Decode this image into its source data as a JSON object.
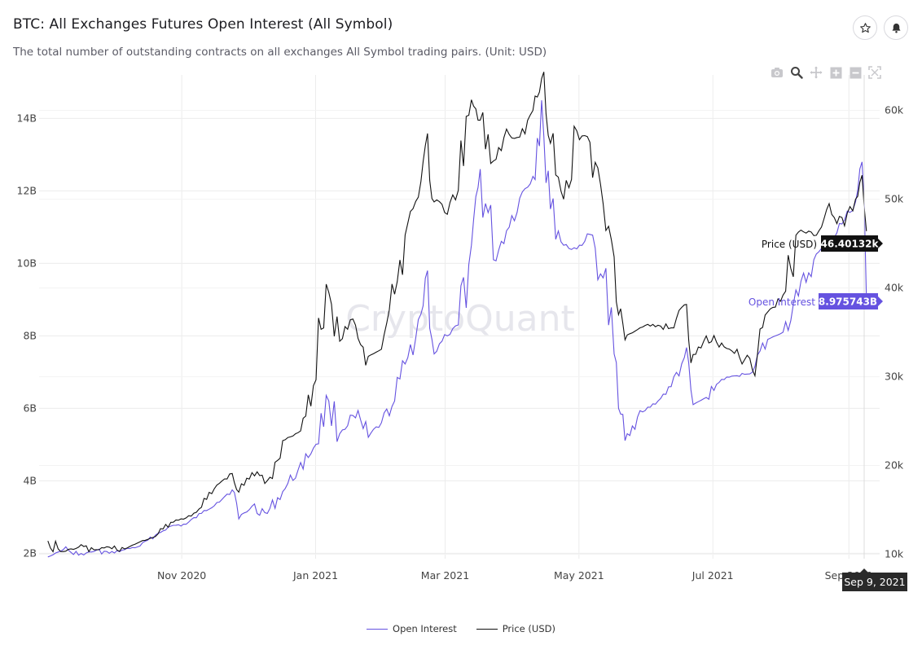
{
  "header": {
    "title": "BTC: All Exchanges Futures Open Interest (All Symbol)",
    "subtitle": "The total number of outstanding contracts on all exchanges All Symbol trading pairs. (Unit: USD)",
    "star_icon": "star-icon",
    "bell_icon": "bell-icon"
  },
  "toolbar": {
    "icons": [
      "camera-icon",
      "zoom-icon",
      "pan-icon",
      "zoom-in-icon",
      "zoom-out-icon",
      "reset-axes-icon"
    ]
  },
  "watermark": "CryptoQuant",
  "colors": {
    "open_interest": "#6552e0",
    "price": "#111111",
    "grid": "#ececec",
    "hover_date_bg": "#2a2a2a"
  },
  "chart_data": {
    "type": "line",
    "x_ticks": [
      "Nov 2020",
      "Jan 2021",
      "Mar 2021",
      "May 2021",
      "Jul 2021",
      "Sep 2021"
    ],
    "y_left_ticks": [
      "2B",
      "4B",
      "6B",
      "8B",
      "10B",
      "12B",
      "14B"
    ],
    "y_right_ticks": [
      "10k",
      "20k",
      "30k",
      "40k",
      "50k",
      "60k"
    ],
    "y_left_range": [
      1.85,
      15.2
    ],
    "y_right_range": [
      9.5,
      64
    ],
    "series": [
      {
        "name": "Open Interest",
        "axis": "left",
        "unit": "B",
        "points": [
          [
            "2020-09-01",
            1.9
          ],
          [
            "2020-09-08",
            2.1
          ],
          [
            "2020-09-15",
            1.95
          ],
          [
            "2020-09-22",
            2.05
          ],
          [
            "2020-09-29",
            2.0
          ],
          [
            "2020-10-06",
            2.1
          ],
          [
            "2020-10-13",
            2.2
          ],
          [
            "2020-10-20",
            2.5
          ],
          [
            "2020-10-27",
            2.75
          ],
          [
            "2020-11-03",
            2.8
          ],
          [
            "2020-11-10",
            3.1
          ],
          [
            "2020-11-17",
            3.4
          ],
          [
            "2020-11-24",
            3.75
          ],
          [
            "2020-11-27",
            2.95
          ],
          [
            "2020-12-03",
            3.3
          ],
          [
            "2020-12-10",
            3.1
          ],
          [
            "2020-12-17",
            3.7
          ],
          [
            "2020-12-24",
            4.3
          ],
          [
            "2020-12-31",
            4.9
          ],
          [
            "2021-01-07",
            6.2
          ],
          [
            "2021-01-12",
            5.3
          ],
          [
            "2021-01-18",
            5.8
          ],
          [
            "2021-01-25",
            5.2
          ],
          [
            "2021-01-31",
            5.6
          ],
          [
            "2021-02-06",
            6.2
          ],
          [
            "2021-02-12",
            7.4
          ],
          [
            "2021-02-18",
            8.6
          ],
          [
            "2021-02-21",
            9.8
          ],
          [
            "2021-02-24",
            7.5
          ],
          [
            "2021-03-02",
            8.0
          ],
          [
            "2021-03-07",
            8.3
          ],
          [
            "2021-03-13",
            10.5
          ],
          [
            "2021-03-17",
            12.6
          ],
          [
            "2021-03-23",
            10.1
          ],
          [
            "2021-03-29",
            10.9
          ],
          [
            "2021-04-04",
            11.8
          ],
          [
            "2021-04-10",
            12.4
          ],
          [
            "2021-04-14",
            14.5
          ],
          [
            "2021-04-18",
            11.5
          ],
          [
            "2021-04-24",
            10.5
          ],
          [
            "2021-04-30",
            10.4
          ],
          [
            "2021-05-06",
            10.8
          ],
          [
            "2021-05-12",
            9.6
          ],
          [
            "2021-05-17",
            7.5
          ],
          [
            "2021-05-19",
            6.0
          ],
          [
            "2021-05-23",
            5.3
          ],
          [
            "2021-05-30",
            5.9
          ],
          [
            "2021-06-06",
            6.2
          ],
          [
            "2021-06-12",
            6.6
          ],
          [
            "2021-06-18",
            7.4
          ],
          [
            "2021-06-22",
            6.1
          ],
          [
            "2021-06-28",
            6.3
          ],
          [
            "2021-07-05",
            6.8
          ],
          [
            "2021-07-12",
            6.9
          ],
          [
            "2021-07-19",
            7.0
          ],
          [
            "2021-07-26",
            7.9
          ],
          [
            "2021-08-02",
            8.1
          ],
          [
            "2021-08-09",
            9.1
          ],
          [
            "2021-08-16",
            10.1
          ],
          [
            "2021-08-23",
            10.6
          ],
          [
            "2021-08-30",
            11.2
          ],
          [
            "2021-09-04",
            11.7
          ],
          [
            "2021-09-07",
            12.8
          ],
          [
            "2021-09-09",
            8.975743
          ]
        ]
      },
      {
        "name": "Price (USD)",
        "axis": "right",
        "unit": "k",
        "points": [
          [
            "2020-09-01",
            11.5
          ],
          [
            "2020-09-08",
            10.3
          ],
          [
            "2020-09-15",
            10.8
          ],
          [
            "2020-09-22",
            10.5
          ],
          [
            "2020-09-29",
            10.8
          ],
          [
            "2020-10-06",
            10.6
          ],
          [
            "2020-10-13",
            11.4
          ],
          [
            "2020-10-20",
            12.0
          ],
          [
            "2020-10-27",
            13.6
          ],
          [
            "2020-11-03",
            14.1
          ],
          [
            "2020-11-10",
            15.3
          ],
          [
            "2020-11-17",
            17.8
          ],
          [
            "2020-11-24",
            19.1
          ],
          [
            "2020-11-27",
            17.0
          ],
          [
            "2020-12-03",
            19.2
          ],
          [
            "2020-12-10",
            18.3
          ],
          [
            "2020-12-17",
            22.8
          ],
          [
            "2020-12-24",
            23.7
          ],
          [
            "2020-12-31",
            29.0
          ],
          [
            "2021-01-07",
            39.5
          ],
          [
            "2021-01-12",
            34.0
          ],
          [
            "2021-01-18",
            36.5
          ],
          [
            "2021-01-25",
            32.3
          ],
          [
            "2021-01-31",
            33.1
          ],
          [
            "2021-02-06",
            39.3
          ],
          [
            "2021-02-12",
            47.3
          ],
          [
            "2021-02-18",
            52.0
          ],
          [
            "2021-02-21",
            57.4
          ],
          [
            "2021-02-24",
            49.7
          ],
          [
            "2021-03-02",
            48.3
          ],
          [
            "2021-03-07",
            51.0
          ],
          [
            "2021-03-13",
            61.2
          ],
          [
            "2021-03-17",
            58.9
          ],
          [
            "2021-03-23",
            54.3
          ],
          [
            "2021-03-29",
            57.9
          ],
          [
            "2021-04-04",
            57.0
          ],
          [
            "2021-04-10",
            60.0
          ],
          [
            "2021-04-14",
            63.6
          ],
          [
            "2021-04-18",
            56.3
          ],
          [
            "2021-04-24",
            50.0
          ],
          [
            "2021-04-30",
            57.7
          ],
          [
            "2021-05-06",
            56.4
          ],
          [
            "2021-05-12",
            49.5
          ],
          [
            "2021-05-17",
            43.5
          ],
          [
            "2021-05-19",
            37.0
          ],
          [
            "2021-05-23",
            34.7
          ],
          [
            "2021-05-30",
            35.6
          ],
          [
            "2021-06-06",
            35.8
          ],
          [
            "2021-06-12",
            35.5
          ],
          [
            "2021-06-18",
            38.1
          ],
          [
            "2021-06-22",
            32.5
          ],
          [
            "2021-06-28",
            34.6
          ],
          [
            "2021-07-05",
            33.8
          ],
          [
            "2021-07-12",
            33.1
          ],
          [
            "2021-07-19",
            30.8
          ],
          [
            "2021-07-26",
            37.3
          ],
          [
            "2021-08-02",
            39.2
          ],
          [
            "2021-08-09",
            46.3
          ],
          [
            "2021-08-16",
            45.9
          ],
          [
            "2021-08-23",
            49.5
          ],
          [
            "2021-08-30",
            47.0
          ],
          [
            "2021-09-04",
            50.0
          ],
          [
            "2021-09-07",
            52.7
          ],
          [
            "2021-09-09",
            46.40132
          ]
        ]
      }
    ],
    "hover": {
      "date": "Sep 9, 2021",
      "open_interest_label": "Open Interest",
      "open_interest_value": "8.975743B",
      "price_label": "Price (USD)",
      "price_value": "46.40132k"
    },
    "legend": [
      "Open Interest",
      "Price (USD)"
    ],
    "legend_position": "bottom-center",
    "grid": true
  }
}
